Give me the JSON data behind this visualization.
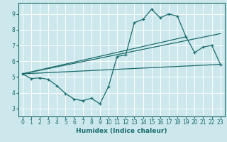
{
  "xlabel": "Humidex (Indice chaleur)",
  "bg_color": "#cce8ed",
  "grid_color": "#ffffff",
  "line_color": "#1a6b6b",
  "xlim": [
    -0.5,
    23.5
  ],
  "ylim": [
    2.5,
    9.7
  ],
  "xticks": [
    0,
    1,
    2,
    3,
    4,
    5,
    6,
    7,
    8,
    9,
    10,
    11,
    12,
    13,
    14,
    15,
    16,
    17,
    18,
    19,
    20,
    21,
    22,
    23
  ],
  "yticks": [
    3,
    4,
    5,
    6,
    7,
    8,
    9
  ],
  "series": [
    [
      0,
      5.2
    ],
    [
      1,
      4.9
    ],
    [
      2,
      4.95
    ],
    [
      3,
      4.85
    ],
    [
      4,
      4.45
    ],
    [
      5,
      3.95
    ],
    [
      6,
      3.6
    ],
    [
      7,
      3.5
    ],
    [
      8,
      3.65
    ],
    [
      9,
      3.3
    ],
    [
      10,
      4.4
    ],
    [
      11,
      6.3
    ],
    [
      12,
      6.4
    ],
    [
      13,
      8.45
    ],
    [
      14,
      8.65
    ],
    [
      15,
      9.3
    ],
    [
      16,
      8.75
    ],
    [
      17,
      9.0
    ],
    [
      18,
      8.85
    ],
    [
      19,
      7.55
    ],
    [
      20,
      6.55
    ],
    [
      21,
      6.9
    ],
    [
      22,
      7.0
    ],
    [
      23,
      5.8
    ]
  ],
  "line2": [
    [
      0,
      5.2
    ],
    [
      23,
      5.8
    ]
  ],
  "line3": [
    [
      0,
      5.2
    ],
    [
      23,
      7.75
    ]
  ],
  "line4": [
    [
      0,
      5.2
    ],
    [
      19,
      7.55
    ]
  ]
}
